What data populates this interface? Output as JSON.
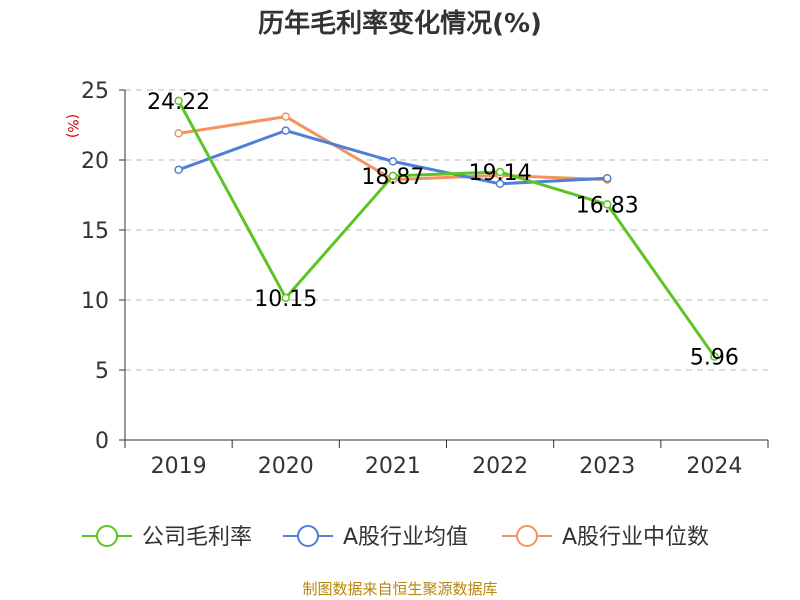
{
  "chart_data": {
    "type": "line",
    "title": "历年毛利率变化情况(%)",
    "ylabel": "(%)",
    "xlabel": "",
    "categories": [
      "2019",
      "2020",
      "2021",
      "2022",
      "2023",
      "2024"
    ],
    "ylim": [
      0,
      25
    ],
    "yticks": [
      0,
      5,
      10,
      15,
      20,
      25
    ],
    "grid": true,
    "legend_position": "bottom",
    "series": [
      {
        "name": "公司毛利率",
        "color": "#5cc524",
        "values": [
          24.22,
          10.15,
          18.87,
          19.14,
          16.83,
          5.96
        ],
        "labels": [
          "24.22",
          "10.15",
          "18.87",
          "19.14",
          "16.83",
          "5.96"
        ],
        "show_labels": true
      },
      {
        "name": "A股行业均值",
        "color": "#4f7fd9",
        "values": [
          19.3,
          22.1,
          19.9,
          18.3,
          18.7,
          null
        ],
        "show_labels": false
      },
      {
        "name": "A股行业中位数",
        "color": "#f4935b",
        "values": [
          21.9,
          23.1,
          18.6,
          18.9,
          18.6,
          null
        ],
        "show_labels": false
      }
    ]
  },
  "source_text": "制图数据来自恒生聚源数据库"
}
